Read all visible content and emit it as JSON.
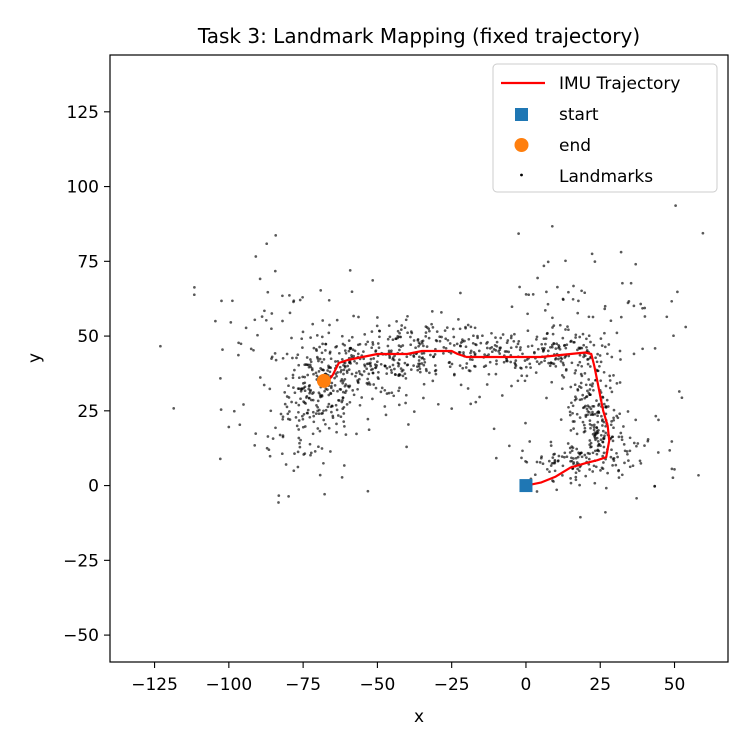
{
  "chart_data": {
    "type": "scatter",
    "title": "Task 3: Landmark Mapping (fixed trajectory)",
    "xlabel": "x",
    "ylabel": "y",
    "xlim": [
      -140,
      68
    ],
    "ylim": [
      -59,
      144
    ],
    "xticks": [
      -125,
      -100,
      -75,
      -50,
      -25,
      0,
      25,
      50
    ],
    "yticks": [
      -50,
      -25,
      0,
      25,
      50,
      75,
      100,
      125
    ],
    "xtick_labels": [
      "−125",
      "−100",
      "−75",
      "−50",
      "−25",
      "0",
      "25",
      "50"
    ],
    "ytick_labels": [
      "−50",
      "−25",
      "0",
      "25",
      "50",
      "75",
      "100",
      "125"
    ],
    "grid": false,
    "legend_position": "upper right",
    "colors": {
      "trajectory": "#ff0000",
      "start": "#1f77b4",
      "end": "#ff7f0e",
      "landmarks": "#000000"
    },
    "series": [
      {
        "name": "IMU Trajectory",
        "kind": "line",
        "x": [
          0,
          5,
          10,
          15,
          20,
          24,
          27,
          28,
          27.5,
          26,
          25,
          24,
          23,
          22,
          20,
          15,
          10,
          5,
          0,
          -5,
          -10,
          -15,
          -20,
          -23,
          -25,
          -30,
          -35,
          -40,
          -45,
          -50,
          -55,
          -60,
          -63,
          -65,
          -67,
          -68.5,
          -70,
          -69,
          -68
        ],
        "y": [
          0,
          1,
          3,
          6,
          7.5,
          8.5,
          9.5,
          15,
          20,
          25,
          30,
          35,
          40,
          44,
          44.5,
          44,
          43.5,
          43,
          43,
          43,
          43,
          43,
          43,
          44,
          45,
          45,
          45,
          44,
          44,
          44,
          43,
          42,
          41,
          37,
          34.5,
          34,
          35,
          35,
          35
        ]
      },
      {
        "name": "start",
        "kind": "marker",
        "marker": "square",
        "x": [
          0
        ],
        "y": [
          0
        ]
      },
      {
        "name": "end",
        "kind": "marker",
        "marker": "circle",
        "x": [
          -68
        ],
        "y": [
          35
        ]
      },
      {
        "name": "Landmarks",
        "kind": "scatter",
        "count": 1300,
        "clusters": [
          {
            "cx": -68,
            "cy": 34,
            "sx": 6,
            "sy": 8,
            "weight": 0.13
          },
          {
            "cx": -75,
            "cy": 22,
            "sx": 8,
            "sy": 12,
            "weight": 0.07
          },
          {
            "cx": -52,
            "cy": 40,
            "sx": 10,
            "sy": 5,
            "weight": 0.1
          },
          {
            "cx": -35,
            "cy": 46,
            "sx": 11,
            "sy": 5,
            "weight": 0.1
          },
          {
            "cx": -10,
            "cy": 44,
            "sx": 12,
            "sy": 4,
            "weight": 0.09
          },
          {
            "cx": 10,
            "cy": 46,
            "sx": 7,
            "sy": 4,
            "weight": 0.06
          },
          {
            "cx": 20,
            "cy": 33,
            "sx": 4,
            "sy": 10,
            "weight": 0.09
          },
          {
            "cx": 25,
            "cy": 18,
            "sx": 4,
            "sy": 8,
            "weight": 0.07
          },
          {
            "cx": 14,
            "cy": 8,
            "sx": 8,
            "sy": 3,
            "weight": 0.07
          },
          {
            "cx": 32,
            "cy": 12,
            "sx": 10,
            "sy": 8,
            "weight": 0.06
          },
          {
            "cx": -80,
            "cy": 50,
            "sx": 18,
            "sy": 14,
            "weight": 0.06
          },
          {
            "cx": -40,
            "cy": 32,
            "sx": 20,
            "sy": 8,
            "weight": 0.05
          },
          {
            "cx": 15,
            "cy": 65,
            "sx": 15,
            "sy": 8,
            "weight": 0.03
          },
          {
            "cx": 40,
            "cy": 50,
            "sx": 12,
            "sy": 15,
            "weight": 0.02
          }
        ]
      }
    ]
  }
}
